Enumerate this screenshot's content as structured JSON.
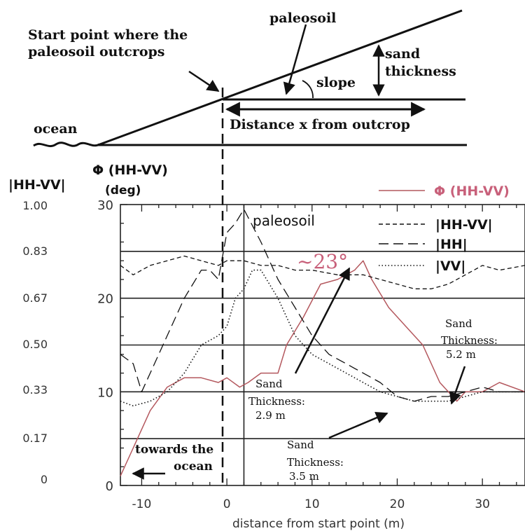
{
  "diagram": {
    "start_point_label_line1": "Start point where the",
    "start_point_label_line2": "paleosoil outcrops",
    "paleosoil_label": "paleosoil",
    "sand_label": "sand",
    "thickness_label": "thickness",
    "slope_label": "slope",
    "ocean_label": "ocean",
    "distance_label": "Distance x from outcrop"
  },
  "chart_data": {
    "type": "line",
    "xlabel": "distance from start point (m)",
    "xlim": [
      -12.5,
      35
    ],
    "x_ticks": [
      "-10",
      "0",
      "10",
      "20",
      "30"
    ],
    "left_axis": {
      "label_line1": "Φ (HH-VV)",
      "label_line2": "(deg)",
      "ylim": [
        0,
        30
      ],
      "ticks": [
        "0",
        "10",
        "20",
        "30"
      ]
    },
    "outer_axis": {
      "label": "|HH-VV|",
      "ticks": [
        "1.00",
        "0.83",
        "0.67",
        "0.50",
        "0.33",
        "0.17",
        "0"
      ]
    },
    "grid_y": [
      5,
      10,
      15,
      20,
      25
    ],
    "vlines": [
      {
        "x": 0,
        "style": "dashed"
      },
      {
        "x": 2
      }
    ],
    "colors": {
      "phase": "#b4585e",
      "phase_label": "#c8607a",
      "ink": "#111111"
    },
    "series": [
      {
        "name": "Φ (HH-VV)",
        "style": "solid",
        "x": [
          -12.5,
          -11,
          -9,
          -7,
          -5,
          -3,
          -1,
          0,
          1.5,
          2.5,
          4,
          6,
          7,
          9,
          11,
          13,
          15,
          16,
          17,
          19,
          21,
          23,
          25,
          26,
          27,
          28,
          30,
          32,
          35
        ],
        "y": [
          1,
          4,
          8,
          10.5,
          11.5,
          11.5,
          11,
          11.5,
          10.5,
          11,
          12,
          12,
          15,
          18,
          21.5,
          22,
          23,
          24,
          22,
          19,
          17,
          15,
          11,
          10,
          9,
          10,
          10,
          11,
          10
        ]
      },
      {
        "name": "|HH-VV|",
        "style": "short-dash",
        "x": [
          -12.5,
          -11,
          -9,
          -7,
          -5,
          -3,
          -1,
          0,
          2,
          4,
          6,
          8,
          10,
          13,
          16,
          18,
          20,
          22,
          24,
          26,
          28,
          30,
          32,
          35
        ],
        "y": [
          23.5,
          22.5,
          23.5,
          24,
          24.5,
          24,
          23.5,
          24,
          24,
          23.5,
          23.5,
          23,
          23,
          22.5,
          22.5,
          22,
          21.5,
          21,
          21,
          21.5,
          22.5,
          23.5,
          23,
          23.5
        ]
      },
      {
        "name": "|HH|",
        "style": "long-dash",
        "x": [
          -12.5,
          -11,
          -10,
          -9,
          -7,
          -5,
          -3,
          -2,
          -1,
          0,
          1,
          2,
          4,
          6,
          8,
          10,
          12,
          14,
          16,
          18,
          20,
          22,
          24,
          26,
          28,
          30,
          32,
          35
        ],
        "y": [
          14,
          13,
          10,
          12,
          16,
          20,
          23,
          23,
          22,
          27,
          28,
          29.5,
          26,
          22,
          19,
          16,
          14,
          13,
          12,
          11,
          9.5,
          9,
          9.5,
          9.5,
          10,
          10.5,
          10,
          10
        ]
      },
      {
        "name": "|VV|",
        "style": "dotted",
        "x": [
          -12.5,
          -11,
          -9,
          -7,
          -5,
          -3,
          -1,
          0,
          1,
          2,
          3,
          4,
          6,
          8,
          10,
          12,
          14,
          16,
          18,
          20,
          22,
          24,
          26,
          28,
          30,
          32,
          35
        ],
        "y": [
          9,
          8.5,
          9,
          10,
          12,
          15,
          16,
          17,
          20,
          21,
          23,
          23,
          20,
          16,
          14,
          13,
          12,
          11,
          10,
          9.5,
          9,
          9,
          9,
          9.5,
          10,
          10,
          10
        ]
      }
    ],
    "annotations": {
      "paleosoil": "paleosoil",
      "angle": "~23°",
      "towards_line1": "towards the",
      "towards_line2": "ocean",
      "st29_line1": "Sand",
      "st29_line2": "Thickness:",
      "st29_line3": "2.9 m",
      "st35_line1": "Sand",
      "st35_line2": "Thickness:",
      "st35_line3": "3.5 m",
      "st52_line1": "Sand",
      "st52_line2": "Thickness:",
      "st52_line3": "5.2 m"
    }
  }
}
